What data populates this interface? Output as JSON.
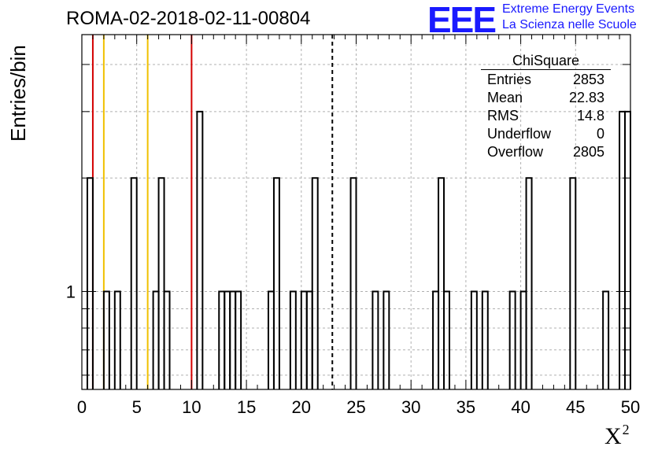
{
  "header": {
    "title": "ROMA-02-2018-02-11-00804",
    "logo_mark": "EEE",
    "logo_line1": "Extreme Energy Events",
    "logo_line2": "La Scienza nelle Scuole"
  },
  "stats_box": {
    "title": "ChiSquare",
    "rows": [
      {
        "label": "Entries",
        "value": "2853"
      },
      {
        "label": "Mean",
        "value": "22.83"
      },
      {
        "label": "RMS",
        "value": "14.8"
      },
      {
        "label": "Underflow",
        "value": "0"
      },
      {
        "label": "Overflow",
        "value": "2805"
      }
    ]
  },
  "chart_data": {
    "type": "histogram",
    "title": "ROMA-02-2018-02-11-00804",
    "xlabel": "X",
    "xlabel_superscript": "2",
    "ylabel": "Entries/bin",
    "xlim": [
      0,
      50
    ],
    "ylog": true,
    "ylim": [
      0.55,
      4.8
    ],
    "bin_width": 0.5,
    "grid": true,
    "x_ticks": [
      "0",
      "5",
      "10",
      "15",
      "20",
      "25",
      "30",
      "35",
      "40",
      "45",
      "50"
    ],
    "y_tick_labels": [
      {
        "value": 1,
        "label": "1"
      }
    ],
    "bins": [
      {
        "x": 0.5,
        "count": 2
      },
      {
        "x": 2.0,
        "count": 1
      },
      {
        "x": 3.0,
        "count": 1
      },
      {
        "x": 4.5,
        "count": 2
      },
      {
        "x": 6.5,
        "count": 1
      },
      {
        "x": 7.0,
        "count": 2
      },
      {
        "x": 7.5,
        "count": 1
      },
      {
        "x": 10.5,
        "count": 3
      },
      {
        "x": 12.5,
        "count": 1
      },
      {
        "x": 13.0,
        "count": 1
      },
      {
        "x": 13.5,
        "count": 1
      },
      {
        "x": 14.0,
        "count": 1
      },
      {
        "x": 17.0,
        "count": 1
      },
      {
        "x": 17.5,
        "count": 2
      },
      {
        "x": 19.0,
        "count": 1
      },
      {
        "x": 20.0,
        "count": 1
      },
      {
        "x": 20.5,
        "count": 1
      },
      {
        "x": 21.0,
        "count": 2
      },
      {
        "x": 24.5,
        "count": 2
      },
      {
        "x": 26.5,
        "count": 1
      },
      {
        "x": 27.5,
        "count": 1
      },
      {
        "x": 32.0,
        "count": 1
      },
      {
        "x": 32.5,
        "count": 2
      },
      {
        "x": 33.0,
        "count": 1
      },
      {
        "x": 35.5,
        "count": 1
      },
      {
        "x": 36.5,
        "count": 1
      },
      {
        "x": 39.0,
        "count": 1
      },
      {
        "x": 40.0,
        "count": 1
      },
      {
        "x": 40.5,
        "count": 2
      },
      {
        "x": 44.5,
        "count": 2
      },
      {
        "x": 47.5,
        "count": 1
      },
      {
        "x": 49.0,
        "count": 3
      },
      {
        "x": 49.5,
        "count": 3
      }
    ],
    "reference_lines": [
      {
        "x": 1,
        "color": "#d40000",
        "style": "solid"
      },
      {
        "x": 2,
        "color": "#f0c000",
        "style": "solid"
      },
      {
        "x": 6,
        "color": "#f0c000",
        "style": "solid"
      },
      {
        "x": 10,
        "color": "#d40000",
        "style": "solid"
      },
      {
        "x": 22.83,
        "color": "#000000",
        "style": "dashed"
      }
    ]
  }
}
